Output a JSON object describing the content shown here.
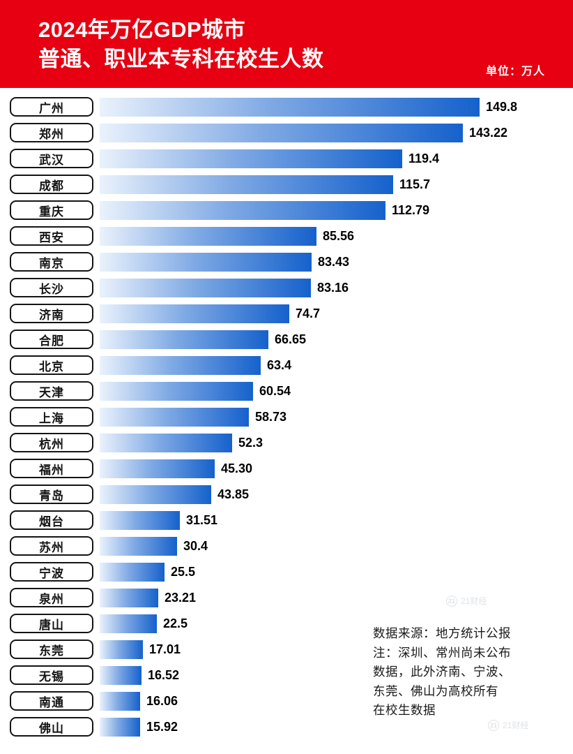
{
  "header": {
    "title_line1": "2024年万亿GDP城市",
    "title_line2": "普通、职业本专科在校生人数",
    "unit_label": "单位：万人",
    "bg_color": "#e60012"
  },
  "chart_data": {
    "type": "bar",
    "orientation": "horizontal",
    "title": "2024年万亿GDP城市普通、职业本专科在校生人数",
    "unit": "万人",
    "xlim": [
      0,
      150
    ],
    "grid": false,
    "legend": "none",
    "bar_gradient": [
      "#eaf2fc",
      "#1561cc"
    ],
    "categories": [
      "广州",
      "郑州",
      "武汉",
      "成都",
      "重庆",
      "西安",
      "南京",
      "长沙",
      "济南",
      "合肥",
      "北京",
      "天津",
      "上海",
      "杭州",
      "福州",
      "青岛",
      "烟台",
      "苏州",
      "宁波",
      "泉州",
      "唐山",
      "东莞",
      "无锡",
      "南通",
      "佛山"
    ],
    "values": [
      149.8,
      143.22,
      119.4,
      115.7,
      112.79,
      85.56,
      83.43,
      83.16,
      74.7,
      66.65,
      63.4,
      60.54,
      58.73,
      52.3,
      45.3,
      43.85,
      31.51,
      30.4,
      25.5,
      23.21,
      22.5,
      17.01,
      16.52,
      16.06,
      15.92
    ],
    "value_labels": [
      "149.8",
      "143.22",
      "119.4",
      "115.7",
      "112.79",
      "85.56",
      "83.43",
      "83.16",
      "74.7",
      "66.65",
      "63.4",
      "60.54",
      "58.73",
      "52.3",
      "45.30",
      "43.85",
      "31.51",
      "30.4",
      "25.5",
      "23.21",
      "22.5",
      "17.01",
      "16.52",
      "16.06",
      "15.92"
    ]
  },
  "footer": {
    "lines": [
      "数据来源：地方统计公报",
      "注：深圳、常州尚未公布",
      "数据，此外济南、宁波、",
      "东莞、佛山为高校所有",
      "在校生数据"
    ]
  },
  "watermark": {
    "badge": "21",
    "text": "21财经"
  }
}
